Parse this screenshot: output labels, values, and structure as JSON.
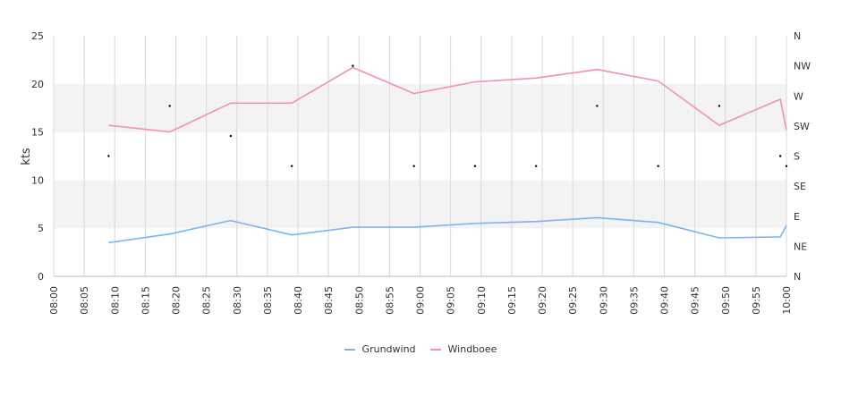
{
  "chart_data": {
    "type": "line",
    "ylabel": "kts",
    "ylim": [
      0,
      25
    ],
    "yticks": [
      0,
      5,
      10,
      15,
      20,
      25
    ],
    "x_range": [
      "08:00",
      "10:00"
    ],
    "x_tick_labels": [
      "08:00",
      "08:05",
      "08:10",
      "08:15",
      "08:20",
      "08:25",
      "08:30",
      "08:35",
      "08:40",
      "08:45",
      "08:50",
      "08:55",
      "09:00",
      "09:05",
      "09:10",
      "09:15",
      "09:20",
      "09:25",
      "09:30",
      "09:35",
      "09:40",
      "09:45",
      "09:50",
      "09:55",
      "10:00"
    ],
    "right_axis": {
      "labels": [
        "N",
        "NE",
        "E",
        "SE",
        "S",
        "SW",
        "W",
        "NW",
        "N"
      ],
      "range_degrees": [
        0,
        360
      ]
    },
    "grid": true,
    "band_colors": [
      "#ffffff",
      "#f3f3f3"
    ],
    "series": [
      {
        "name": "Grundwind",
        "color": "#7cb5ec",
        "x": [
          "08:09",
          "08:19",
          "08:29",
          "08:39",
          "08:49",
          "08:59",
          "09:09",
          "09:19",
          "09:29",
          "09:39",
          "09:49",
          "09:59",
          "10:00"
        ],
        "values": [
          3.5,
          4.4,
          5.8,
          4.3,
          5.1,
          5.1,
          5.5,
          5.7,
          6.1,
          5.6,
          4.0,
          4.1,
          5.3
        ]
      },
      {
        "name": "Windboee",
        "color": "#f28fba",
        "x": [
          "08:09",
          "08:19",
          "08:29",
          "08:39",
          "08:49",
          "08:59",
          "09:09",
          "09:19",
          "09:29",
          "09:39",
          "09:49",
          "09:59",
          "10:00"
        ],
        "values": [
          15.7,
          15.0,
          18.0,
          18.0,
          21.7,
          19.0,
          20.2,
          20.6,
          21.5,
          20.3,
          15.7,
          18.4,
          15.2
        ]
      }
    ],
    "direction_points": {
      "color": "#000000",
      "x": [
        "08:09",
        "08:19",
        "08:29",
        "08:39",
        "08:49",
        "08:59",
        "09:09",
        "09:19",
        "09:29",
        "09:39",
        "09:49",
        "09:59",
        "10:00"
      ],
      "degrees": [
        180,
        255,
        210,
        165,
        315,
        165,
        165,
        165,
        255,
        165,
        255,
        180,
        165
      ]
    },
    "legend_position": "bottom-center"
  }
}
